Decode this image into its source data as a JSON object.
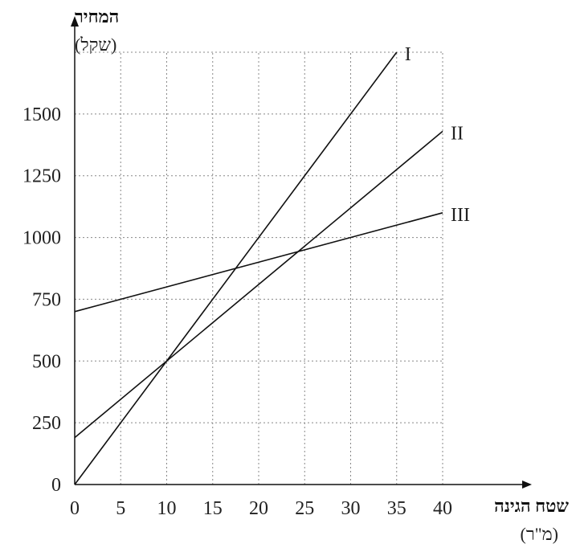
{
  "chart_data": {
    "type": "line",
    "ylabel": "המחיר",
    "ylabel_unit": "(שקל)",
    "xlabel": "שטח הגינה",
    "xlabel_unit": "(מ\"ר)",
    "xlim": [
      0,
      40
    ],
    "ylim": [
      0,
      1750
    ],
    "x_ticks": [
      0,
      5,
      10,
      15,
      20,
      25,
      30,
      35,
      40
    ],
    "y_ticks": [
      0,
      250,
      500,
      750,
      1000,
      1250,
      1500
    ],
    "x_tick_labels": [
      "0",
      "5",
      "10",
      "15",
      "20",
      "25",
      "30",
      "35",
      "40"
    ],
    "y_tick_labels": [
      "0",
      "250",
      "500",
      "750",
      "1000",
      "1250",
      "1500"
    ],
    "grid": true,
    "series": [
      {
        "name": "I",
        "x": [
          0,
          35
        ],
        "y": [
          0,
          1750
        ]
      },
      {
        "name": "II",
        "x": [
          0,
          40
        ],
        "y": [
          190,
          1430
        ]
      },
      {
        "name": "III",
        "x": [
          0,
          40
        ],
        "y": [
          700,
          1100
        ]
      }
    ]
  }
}
